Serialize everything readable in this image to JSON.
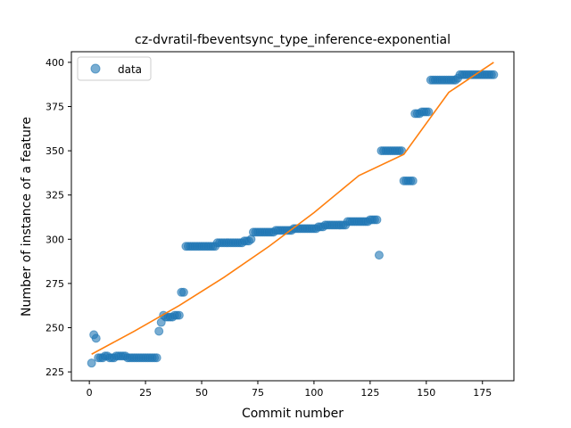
{
  "chart_data": {
    "type": "scatter",
    "title": "cz-dvratil-fbeventsync_type_inference-exponential",
    "xlabel": "Commit number",
    "ylabel": "Number of instance of a feature",
    "xlim": [
      -8,
      189
    ],
    "ylim": [
      220,
      406
    ],
    "x_ticks": [
      0,
      25,
      50,
      75,
      100,
      125,
      150,
      175
    ],
    "y_ticks": [
      225,
      250,
      275,
      300,
      325,
      350,
      375,
      400
    ],
    "x_tick_labels": [
      "0",
      "25",
      "50",
      "75",
      "100",
      "125",
      "150",
      "175"
    ],
    "y_tick_labels": [
      "225",
      "250",
      "275",
      "300",
      "325",
      "350",
      "375",
      "400"
    ],
    "legend": {
      "position": "top-left",
      "entries": [
        "data"
      ]
    },
    "grid": false,
    "colors": {
      "data": "#1f77b4",
      "fit": "#ff7f0e"
    },
    "series": [
      {
        "name": "data",
        "kind": "scatter",
        "points": [
          [
            1,
            230
          ],
          [
            2,
            246
          ],
          [
            3,
            244
          ],
          [
            4,
            233
          ],
          [
            5,
            233
          ],
          [
            6,
            233
          ],
          [
            7,
            234
          ],
          [
            8,
            234
          ],
          [
            9,
            233
          ],
          [
            10,
            233
          ],
          [
            11,
            233
          ],
          [
            12,
            234
          ],
          [
            13,
            234
          ],
          [
            14,
            234
          ],
          [
            15,
            234
          ],
          [
            16,
            234
          ],
          [
            17,
            233
          ],
          [
            18,
            233
          ],
          [
            19,
            233
          ],
          [
            20,
            233
          ],
          [
            21,
            233
          ],
          [
            22,
            233
          ],
          [
            23,
            233
          ],
          [
            24,
            233
          ],
          [
            25,
            233
          ],
          [
            26,
            233
          ],
          [
            27,
            233
          ],
          [
            28,
            233
          ],
          [
            29,
            233
          ],
          [
            30,
            233
          ],
          [
            31,
            248
          ],
          [
            32,
            253
          ],
          [
            33,
            257
          ],
          [
            34,
            256
          ],
          [
            35,
            256
          ],
          [
            36,
            256
          ],
          [
            37,
            256
          ],
          [
            38,
            257
          ],
          [
            39,
            257
          ],
          [
            40,
            257
          ],
          [
            41,
            270
          ],
          [
            42,
            270
          ],
          [
            43,
            296
          ],
          [
            44,
            296
          ],
          [
            45,
            296
          ],
          [
            46,
            296
          ],
          [
            47,
            296
          ],
          [
            48,
            296
          ],
          [
            49,
            296
          ],
          [
            50,
            296
          ],
          [
            51,
            296
          ],
          [
            52,
            296
          ],
          [
            53,
            296
          ],
          [
            54,
            296
          ],
          [
            55,
            296
          ],
          [
            56,
            296
          ],
          [
            57,
            298
          ],
          [
            58,
            298
          ],
          [
            59,
            298
          ],
          [
            60,
            298
          ],
          [
            61,
            298
          ],
          [
            62,
            298
          ],
          [
            63,
            298
          ],
          [
            64,
            298
          ],
          [
            65,
            298
          ],
          [
            66,
            298
          ],
          [
            67,
            298
          ],
          [
            68,
            298
          ],
          [
            69,
            299
          ],
          [
            70,
            299
          ],
          [
            71,
            299
          ],
          [
            72,
            300
          ],
          [
            73,
            304
          ],
          [
            74,
            304
          ],
          [
            75,
            304
          ],
          [
            76,
            304
          ],
          [
            77,
            304
          ],
          [
            78,
            304
          ],
          [
            79,
            304
          ],
          [
            80,
            304
          ],
          [
            81,
            304
          ],
          [
            82,
            304
          ],
          [
            83,
            305
          ],
          [
            84,
            305
          ],
          [
            85,
            305
          ],
          [
            86,
            305
          ],
          [
            87,
            305
          ],
          [
            88,
            305
          ],
          [
            89,
            305
          ],
          [
            90,
            305
          ],
          [
            91,
            306
          ],
          [
            92,
            306
          ],
          [
            93,
            306
          ],
          [
            94,
            306
          ],
          [
            95,
            306
          ],
          [
            96,
            306
          ],
          [
            97,
            306
          ],
          [
            98,
            306
          ],
          [
            99,
            306
          ],
          [
            100,
            306
          ],
          [
            101,
            306
          ],
          [
            102,
            307
          ],
          [
            103,
            307
          ],
          [
            104,
            307
          ],
          [
            105,
            308
          ],
          [
            106,
            308
          ],
          [
            107,
            308
          ],
          [
            108,
            308
          ],
          [
            109,
            308
          ],
          [
            110,
            308
          ],
          [
            111,
            308
          ],
          [
            112,
            308
          ],
          [
            113,
            308
          ],
          [
            114,
            308
          ],
          [
            115,
            310
          ],
          [
            116,
            310
          ],
          [
            117,
            310
          ],
          [
            118,
            310
          ],
          [
            119,
            310
          ],
          [
            120,
            310
          ],
          [
            121,
            310
          ],
          [
            122,
            310
          ],
          [
            123,
            310
          ],
          [
            124,
            310
          ],
          [
            125,
            311
          ],
          [
            126,
            311
          ],
          [
            127,
            311
          ],
          [
            128,
            311
          ],
          [
            129,
            291
          ],
          [
            130,
            350
          ],
          [
            131,
            350
          ],
          [
            132,
            350
          ],
          [
            133,
            350
          ],
          [
            134,
            350
          ],
          [
            135,
            350
          ],
          [
            136,
            350
          ],
          [
            137,
            350
          ],
          [
            138,
            350
          ],
          [
            139,
            350
          ],
          [
            140,
            333
          ],
          [
            141,
            333
          ],
          [
            142,
            333
          ],
          [
            143,
            333
          ],
          [
            144,
            333
          ],
          [
            145,
            371
          ],
          [
            146,
            371
          ],
          [
            147,
            371
          ],
          [
            148,
            372
          ],
          [
            149,
            372
          ],
          [
            150,
            372
          ],
          [
            151,
            372
          ],
          [
            152,
            390
          ],
          [
            153,
            390
          ],
          [
            154,
            390
          ],
          [
            155,
            390
          ],
          [
            156,
            390
          ],
          [
            157,
            390
          ],
          [
            158,
            390
          ],
          [
            159,
            390
          ],
          [
            160,
            390
          ],
          [
            161,
            390
          ],
          [
            162,
            390
          ],
          [
            163,
            390
          ],
          [
            164,
            391
          ],
          [
            165,
            393
          ],
          [
            166,
            393
          ],
          [
            167,
            393
          ],
          [
            168,
            393
          ],
          [
            169,
            393
          ],
          [
            170,
            393
          ],
          [
            171,
            393
          ],
          [
            172,
            393
          ],
          [
            173,
            393
          ],
          [
            174,
            393
          ],
          [
            175,
            393
          ],
          [
            176,
            393
          ],
          [
            177,
            393
          ],
          [
            178,
            393
          ],
          [
            179,
            393
          ],
          [
            180,
            393
          ]
        ]
      },
      {
        "kind": "line",
        "points": [
          [
            1,
            235
          ],
          [
            20,
            248
          ],
          [
            40,
            262.5
          ],
          [
            60,
            278.5
          ],
          [
            80,
            296
          ],
          [
            100,
            315
          ],
          [
            120,
            336
          ],
          [
            140,
            348
          ],
          [
            160,
            383
          ],
          [
            180,
            400
          ]
        ]
      }
    ]
  }
}
